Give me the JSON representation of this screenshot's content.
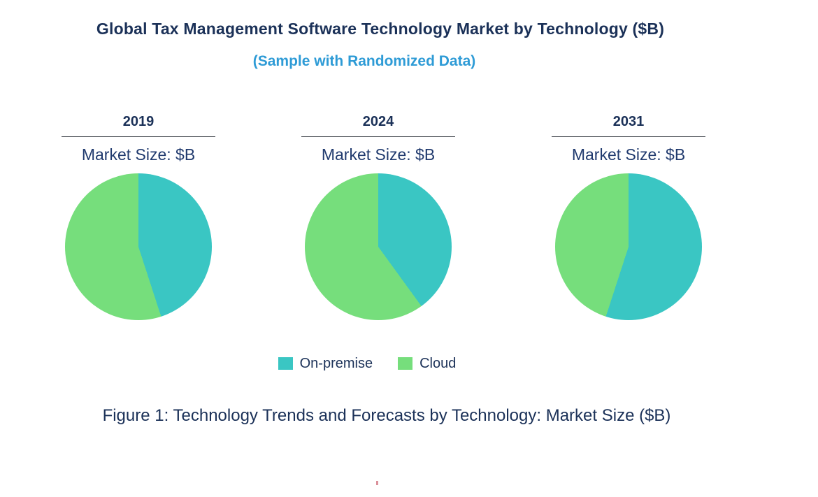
{
  "title": "Global Tax Management Software Technology Market by Technology ($B)",
  "subtitle": "(Sample with Randomized Data)",
  "caption": "Figure 1: Technology Trends and Forecasts by Technology: Market Size ($B)",
  "colors": {
    "title_navy": "#1B3158",
    "subtitle_blue": "#2E9BD6",
    "on_premise_teal": "#3AC6C3",
    "cloud_green": "#76DE7C"
  },
  "legend": {
    "items": [
      {
        "label": "On-premise",
        "color": "#3AC6C3"
      },
      {
        "label": "Cloud",
        "color": "#76DE7C"
      }
    ]
  },
  "chart_data": [
    {
      "type": "pie",
      "year": "2019",
      "subtitle": "Market Size: $B",
      "labels": [
        "On-premise",
        "Cloud"
      ],
      "values_percent": [
        45,
        55
      ],
      "colors": [
        "#3AC6C3",
        "#76DE7C"
      ],
      "start_angle_deg": 0,
      "direction": "clockwise"
    },
    {
      "type": "pie",
      "year": "2024",
      "subtitle": "Market Size: $B",
      "labels": [
        "On-premise",
        "Cloud"
      ],
      "values_percent": [
        40,
        60
      ],
      "colors": [
        "#3AC6C3",
        "#76DE7C"
      ],
      "start_angle_deg": 0,
      "direction": "clockwise"
    },
    {
      "type": "pie",
      "year": "2031",
      "subtitle": "Market Size: $B",
      "labels": [
        "On-premise",
        "Cloud"
      ],
      "values_percent": [
        55,
        45
      ],
      "colors": [
        "#3AC6C3",
        "#76DE7C"
      ],
      "start_angle_deg": 0,
      "direction": "clockwise"
    }
  ]
}
